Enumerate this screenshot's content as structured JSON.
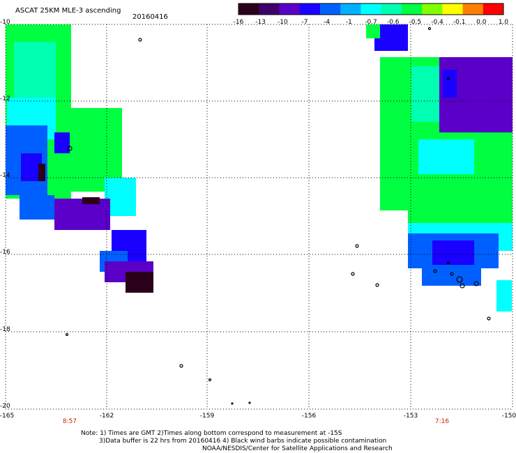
{
  "header": {
    "product_title": "ASCAT 25KM MLE-3 ascending",
    "date": "20160416"
  },
  "colorbar": {
    "ticks": [
      "-16",
      "-13",
      "-10",
      "-7",
      "-4",
      "-1",
      "-0.7",
      "-0.6",
      "-0.5",
      "-0.4",
      "-0.1",
      "0.0",
      "1.0"
    ],
    "colors": [
      "#2a001a",
      "#3f006a",
      "#5a00c8",
      "#1a00ff",
      "#0060ff",
      "#00b0ff",
      "#00ffff",
      "#00ffb0",
      "#00ff40",
      "#80ff00",
      "#ffff00",
      "#ff8000",
      "#ff0000"
    ]
  },
  "axes": {
    "lat_labels": [
      "-10",
      "-12",
      "-14",
      "-16",
      "-18",
      "-20"
    ],
    "lon_labels": [
      "-165",
      "-162",
      "-159",
      "-156",
      "-153",
      "-150"
    ]
  },
  "time_labels": [
    "8:57",
    "7:16"
  ],
  "notes": {
    "line1": "Note: 1) Times are GMT 2)Times along bottom correspond to measurement at -15S",
    "line2": "3)Data buffer is 22 hrs from 20160416 4) Black wind barbs indicate possible contamination",
    "line3": "NOAA/NESDIS/Center for Satellite Applications and Research"
  },
  "colors": {
    "green": "#00ff40",
    "cyan": "#00ffff",
    "blue": "#1a00ff",
    "purple": "#5a00c8",
    "dark_purple": "#2a001a",
    "time_label": "#cc2200"
  }
}
